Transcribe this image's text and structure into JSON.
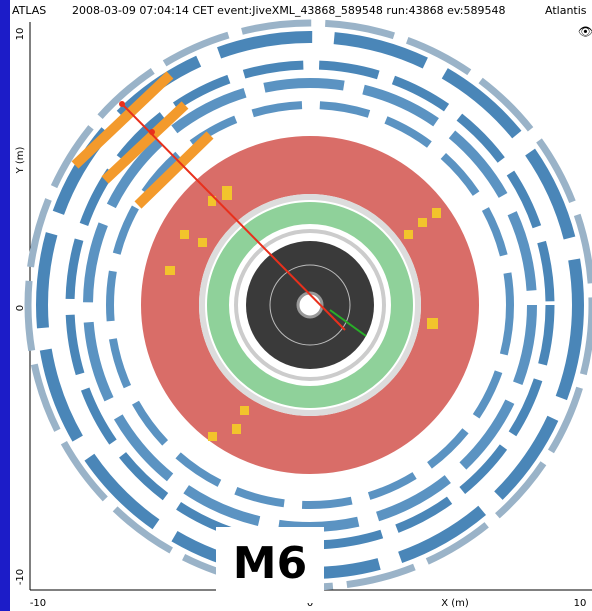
{
  "header": {
    "app": "ATLAS",
    "event_info": "2008-03-09 07:04:14 CET event:JiveXML_43868_589548 run:43868 ev:589548",
    "brand": "Atlantis"
  },
  "y_axis": {
    "label": "Y (m)",
    "ticks": [
      "10",
      "0",
      "-10"
    ]
  },
  "x_axis": {
    "label": "X (m)",
    "ticks": [
      "-10",
      "0",
      "10"
    ]
  },
  "overlay_label": "M6"
}
